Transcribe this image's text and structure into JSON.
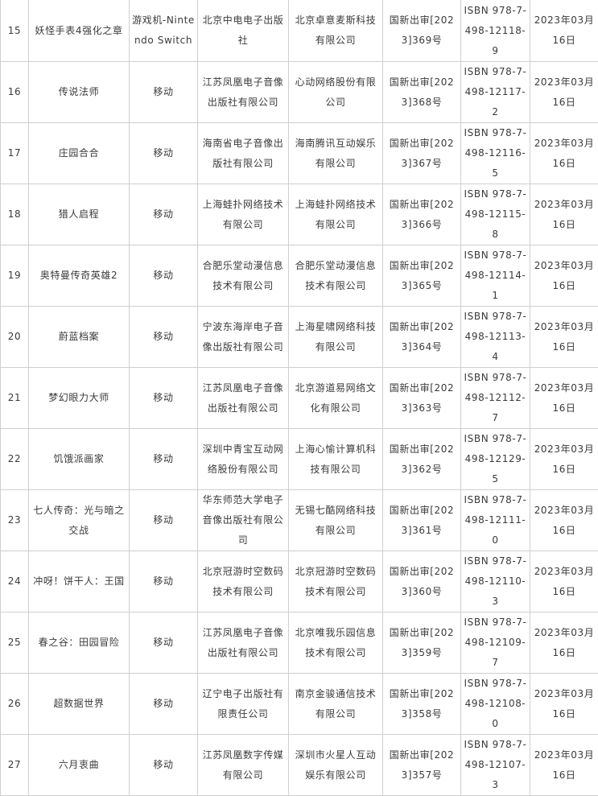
{
  "rows": [
    {
      "no": "15",
      "name": "妖怪手表4强化之章",
      "platform": "游戏机-Nintendo Switch",
      "publisher": "北京中电电子出版社",
      "operator": "北京卓意麦斯科技有限公司",
      "approval": "国新出审[2023]369号",
      "isbn": "ISBN 978-7-498-12118-9",
      "date": "2023年03月16日"
    },
    {
      "no": "16",
      "name": "传说法师",
      "platform": "移动",
      "publisher": "江苏凤凰电子音像出版社有限公司",
      "operator": "心动网络股份有限公司",
      "approval": "国新出审[2023]368号",
      "isbn": "ISBN 978-7-498-12117-2",
      "date": "2023年03月16日"
    },
    {
      "no": "17",
      "name": "庄园合合",
      "platform": "移动",
      "publisher": "海南省电子音像出版社有限公司",
      "operator": "海南腾讯互动娱乐有限公司",
      "approval": "国新出审[2023]367号",
      "isbn": "ISBN 978-7-498-12116-5",
      "date": "2023年03月16日"
    },
    {
      "no": "18",
      "name": "猎人启程",
      "platform": "移动",
      "publisher": "上海蛙扑网络技术有限公司",
      "operator": "上海蛙扑网络技术有限公司",
      "approval": "国新出审[2023]366号",
      "isbn": "ISBN 978-7-498-12115-8",
      "date": "2023年03月16日"
    },
    {
      "no": "19",
      "name": "奥特曼传奇英雄2",
      "platform": "移动",
      "publisher": "合肥乐堂动漫信息技术有限公司",
      "operator": "合肥乐堂动漫信息技术有限公司",
      "approval": "国新出审[2023]365号",
      "isbn": "ISBN 978-7-498-12114-1",
      "date": "2023年03月16日"
    },
    {
      "no": "20",
      "name": "蔚蓝档案",
      "platform": "移动",
      "publisher": "宁波东海岸电子音像出版社有限公司",
      "operator": "上海星啸网络科技有限公司",
      "approval": "国新出审[2023]364号",
      "isbn": "ISBN 978-7-498-12113-4",
      "date": "2023年03月16日"
    },
    {
      "no": "21",
      "name": "梦幻眼力大师",
      "platform": "移动",
      "publisher": "江苏凤凰电子音像出版社有限公司",
      "operator": "北京游道易网络文化有限公司",
      "approval": "国新出审[2023]363号",
      "isbn": "ISBN 978-7-498-12112-7",
      "date": "2023年03月16日"
    },
    {
      "no": "22",
      "name": "饥饿派画家",
      "platform": "移动",
      "publisher": "深圳中青宝互动网络股份有限公司",
      "operator": "上海心愉计算机科技有限公司",
      "approval": "国新出审[2023]362号",
      "isbn": "ISBN 978-7-498-12129-5",
      "date": "2023年03月16日"
    },
    {
      "no": "23",
      "name": "七人传奇：光与暗之交战",
      "platform": "移动",
      "publisher": "华东师范大学电子音像出版社有限公司",
      "operator": "无锡七酷网络科技有限公司",
      "approval": "国新出审[2023]361号",
      "isbn": "ISBN 978-7-498-12111-0",
      "date": "2023年03月16日"
    },
    {
      "no": "24",
      "name": "冲呀！饼干人：王国",
      "platform": "移动",
      "publisher": "北京冠游时空数码技术有限公司",
      "operator": "北京冠游时空数码技术有限公司",
      "approval": "国新出审[2023]360号",
      "isbn": "ISBN 978-7-498-12110-3",
      "date": "2023年03月16日"
    },
    {
      "no": "25",
      "name": "春之谷：田园冒险",
      "platform": "移动",
      "publisher": "江苏凤凰电子音像出版社有限公司",
      "operator": "北京唯我乐园信息技术有限公司",
      "approval": "国新出审[2023]359号",
      "isbn": "ISBN 978-7-498-12109-7",
      "date": "2023年03月16日"
    },
    {
      "no": "26",
      "name": "超数据世界",
      "platform": "移动",
      "publisher": "辽宁电子出版社有限责任公司",
      "operator": "南京金骏通信技术有限公司",
      "approval": "国新出审[2023]358号",
      "isbn": "ISBN 978-7-498-12108-0",
      "date": "2023年03月16日"
    },
    {
      "no": "27",
      "name": "六月衷曲",
      "platform": "移动",
      "publisher": "江苏凤凰数字传媒有限公司",
      "operator": "深圳市火星人互动娱乐有限公司",
      "approval": "国新出审[2023]357号",
      "isbn": "ISBN 978-7-498-12107-3",
      "date": "2023年03月16日"
    }
  ]
}
